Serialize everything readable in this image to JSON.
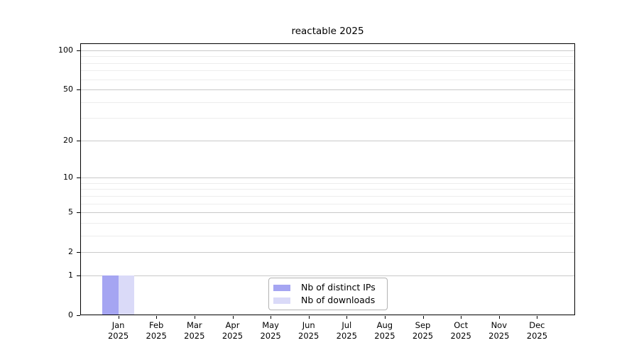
{
  "title": "reactable 2025",
  "chart_data": {
    "type": "bar",
    "title": "reactable 2025",
    "categories": [
      "Jan 2025",
      "Feb 2025",
      "Mar 2025",
      "Apr 2025",
      "May 2025",
      "Jun 2025",
      "Jul 2025",
      "Aug 2025",
      "Sep 2025",
      "Oct 2025",
      "Nov 2025",
      "Dec 2025"
    ],
    "series": [
      {
        "name": "Nb of distinct IPs",
        "color": "#a5a5f2",
        "values": [
          1,
          0,
          0,
          0,
          0,
          0,
          0,
          0,
          0,
          0,
          0,
          0
        ]
      },
      {
        "name": "Nb of downloads",
        "color": "#dadaf8",
        "values": [
          1,
          0,
          0,
          0,
          0,
          0,
          0,
          0,
          0,
          0,
          0,
          0
        ]
      }
    ],
    "yscale": "log1p",
    "ylim": [
      0,
      113
    ],
    "y_major_ticks": [
      0,
      1,
      2,
      5,
      10,
      20,
      50,
      100
    ],
    "y_minor_ticks": [
      3,
      4,
      6,
      7,
      8,
      9,
      30,
      40,
      60,
      70,
      80,
      90
    ],
    "grid": "horizontal",
    "legend_position": "lower center",
    "colors": {
      "axis": "#000000",
      "grid_major": "#c9c9c9",
      "grid_minor": "#ededed",
      "legend_border": "#b3b3b3"
    }
  }
}
